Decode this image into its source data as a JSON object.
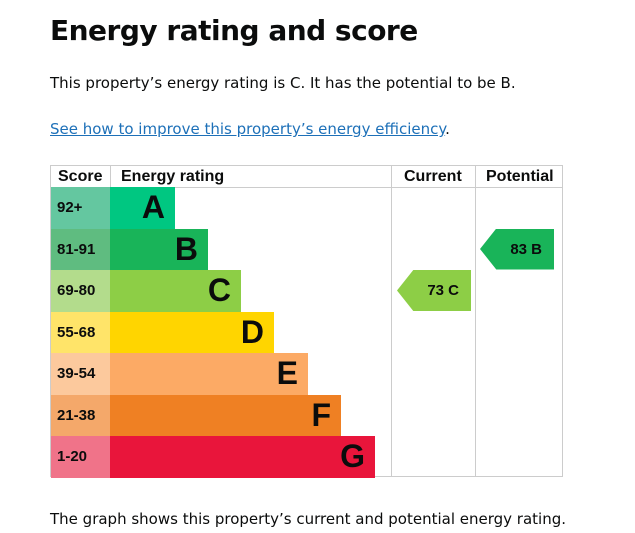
{
  "title": "Energy rating and score",
  "summary": "This property’s energy rating is C. It has the potential to be B.",
  "link": "See how to improve this property’s energy efficiency",
  "link_suffix": ".",
  "table": {
    "headers": {
      "score": "Score",
      "rating": "Energy rating",
      "current": "Current",
      "potential": "Potential"
    },
    "rows": [
      {
        "score": "92+",
        "band": "A",
        "color": "#00c781",
        "light": "#64c7a0"
      },
      {
        "score": "81-91",
        "band": "B",
        "color": "#19b459",
        "light": "#5fbc80"
      },
      {
        "score": "69-80",
        "band": "C",
        "color": "#8dce46",
        "light": "#b3dc8c"
      },
      {
        "score": "55-68",
        "band": "D",
        "color": "#ffd500",
        "light": "#ffe469"
      },
      {
        "score": "39-54",
        "band": "E",
        "color": "#fcaa65",
        "light": "#fcc99d"
      },
      {
        "score": "21-38",
        "band": "F",
        "color": "#ef8023",
        "light": "#f4a86a"
      },
      {
        "score": "1-20",
        "band": "G",
        "color": "#e9153b",
        "light": "#f07389"
      }
    ],
    "current": {
      "label": "73 C",
      "score": 73,
      "band": "C",
      "color": "#8dce46"
    },
    "potential": {
      "label": "83 B",
      "score": 83,
      "band": "B",
      "color": "#19b459"
    }
  },
  "footer": "The graph shows this property’s current and potential energy rating."
}
